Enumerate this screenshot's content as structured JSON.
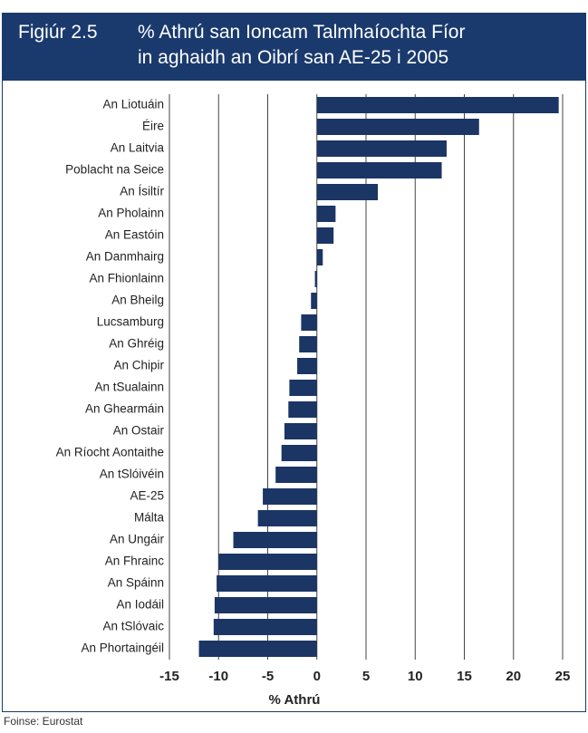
{
  "chart_data": {
    "type": "hbar",
    "figure_label": "Figiúr 2.5",
    "title": [
      "% Athrú san Ioncam Talmhaíochta Fíor",
      "in aghaidh an Oibrí san AE-25 i 2005"
    ],
    "categories": [
      "An Liotuáin",
      "Éire",
      "An Laitvia",
      "Poblacht na Seice",
      "An Ísiltír",
      "An Pholainn",
      "An Eastóin",
      "An Danmhairg",
      "An Fhionlainn",
      "An Bheilg",
      "Lucsamburg",
      "An Ghréig",
      "An Chipir",
      "An tSualainn",
      "An Ghearmáin",
      "An Ostair",
      "An Ríocht Aontaithe",
      "An tSlóivéin",
      "AE-25",
      "Málta",
      "An Ungáir",
      "An Fhrainc",
      "An Spáinn",
      "An Iodáil",
      "An tSlóvaic",
      "An Phortaingéil"
    ],
    "values": [
      24.6,
      16.5,
      13.2,
      12.7,
      6.2,
      1.9,
      1.7,
      0.6,
      -0.2,
      -0.6,
      -1.6,
      -1.8,
      -2.0,
      -2.8,
      -2.9,
      -3.3,
      -3.6,
      -4.2,
      -5.5,
      -6.0,
      -8.5,
      -10.0,
      -10.2,
      -10.4,
      -10.5,
      -12.0
    ],
    "color": "#1b3565",
    "xlim": [
      -15,
      25
    ],
    "xticks": [
      -15,
      -10,
      -5,
      0,
      5,
      10,
      15,
      20,
      25
    ],
    "grid": true,
    "xlabel": "% Athrú",
    "source": "Foinse: Eurostat"
  }
}
